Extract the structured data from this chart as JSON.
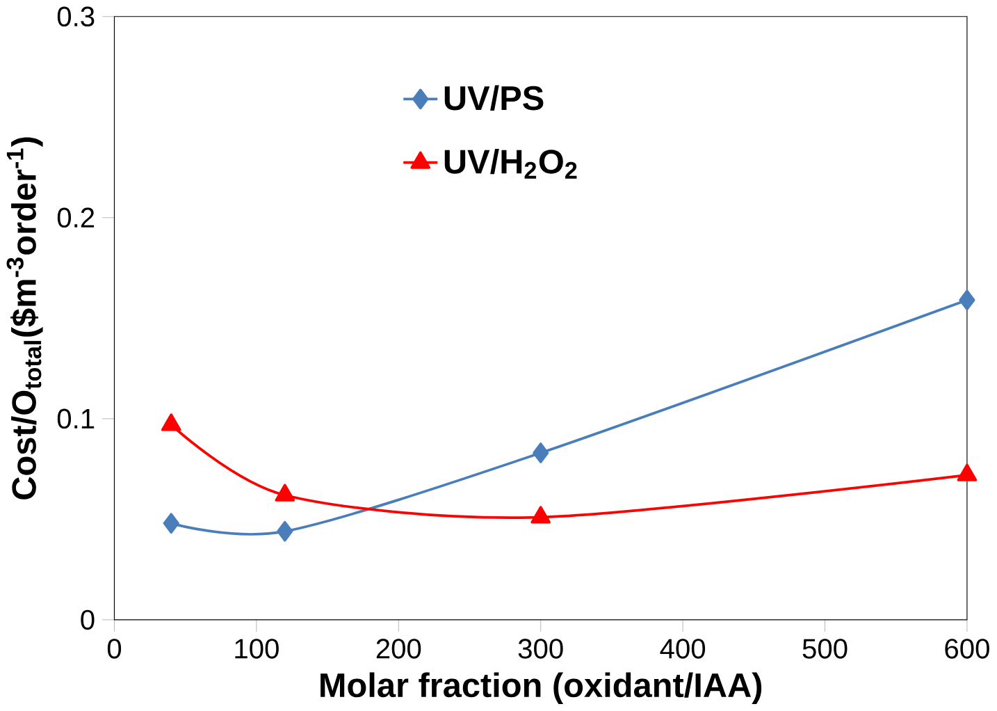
{
  "chart_data": {
    "type": "line",
    "xlabel": "Molar fraction (oxidant/IAA)",
    "ylabel": "Cost/O$_{total}$($m$^{-3}$order$^{-1}$)",
    "x": [
      40,
      120,
      300,
      600
    ],
    "series": [
      {
        "name": "UV/PS",
        "color": "#4a7ebb",
        "marker": "diamond",
        "values": [
          0.048,
          0.044,
          0.083,
          0.159
        ]
      },
      {
        "name": "UV/H$_{2}$O$_{2}$",
        "color": "#ff0000",
        "marker": "triangle",
        "values": [
          0.097,
          0.062,
          0.051,
          0.072
        ]
      }
    ],
    "xlim": [
      0,
      600
    ],
    "xticks": [
      0,
      100,
      200,
      300,
      400,
      500,
      600
    ],
    "ylim": [
      0,
      0.3
    ],
    "yticks": [
      0,
      0.1,
      0.2,
      0.3
    ],
    "grid": false,
    "legend": "top"
  }
}
